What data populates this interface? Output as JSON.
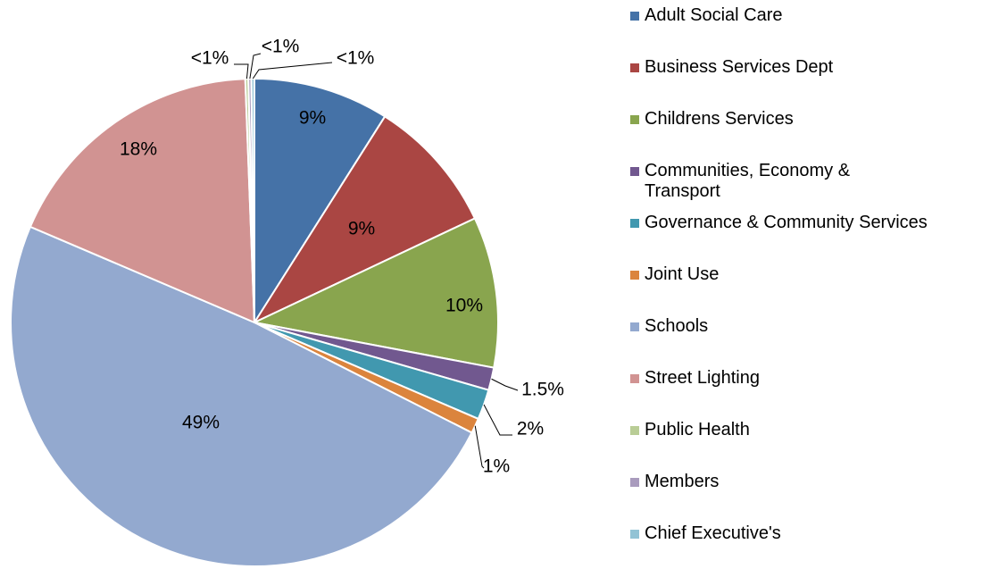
{
  "chart_data": {
    "type": "pie",
    "categories": [
      "Adult Social Care",
      "Business Services Dept",
      "Childrens Services",
      "Communities, Economy & Transport",
      "Governance & Community Services",
      "Joint Use",
      "Schools",
      "Street Lighting",
      "Public Health",
      "Members",
      "Chief Executive's"
    ],
    "values": [
      9,
      9,
      10,
      1.5,
      2,
      1,
      49,
      18,
      0.2,
      0.2,
      0.2
    ],
    "value_labels": [
      "9%",
      "9%",
      "10%",
      "1.5%",
      "2%",
      "1%",
      "49%",
      "18%",
      "<1%",
      "<1%",
      "<1%"
    ],
    "colors": [
      "#4572a7",
      "#aa4643",
      "#89a54e",
      "#71588f",
      "#4198af",
      "#db843d",
      "#93a9cf",
      "#d19392",
      "#b9cd96",
      "#a99bbd",
      "#92c3d5"
    ],
    "legend": "right"
  }
}
